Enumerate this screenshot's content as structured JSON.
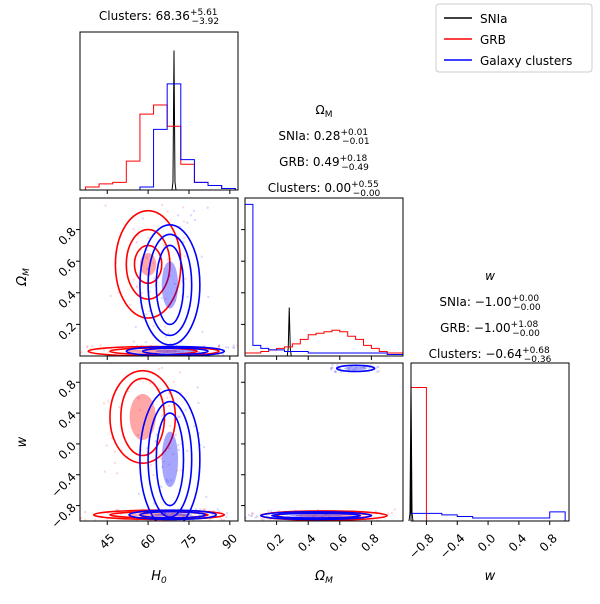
{
  "chart_data": {
    "type": "corner",
    "legend": {
      "placement": "top-right",
      "entries": [
        {
          "name": "SNIa",
          "color": "#000000"
        },
        {
          "name": "GRB",
          "color": "#ff0000"
        },
        {
          "name": "Galaxy clusters",
          "color": "#0000ff"
        }
      ]
    },
    "parameters": [
      {
        "key": "H0",
        "label": "H",
        "sub": "0",
        "range": [
          35,
          93
        ],
        "ticks": [
          45,
          60,
          75,
          90
        ],
        "tick_labels": [
          "45",
          "60",
          "75",
          "90"
        ]
      },
      {
        "key": "OmegaM",
        "label": "Ω",
        "sub": "M",
        "range": [
          0.0,
          1.0
        ],
        "ticks": [
          0.2,
          0.4,
          0.6,
          0.8
        ],
        "tick_labels": [
          "0.2",
          "0.4",
          "0.6",
          "0.8"
        ]
      },
      {
        "key": "w",
        "label": "w",
        "sub": "",
        "range": [
          -1.0,
          1.05
        ],
        "ticks": [
          -0.8,
          -0.4,
          0.0,
          0.4,
          0.8
        ],
        "tick_labels": [
          "−0.8",
          "−0.4",
          "0.0",
          "0.4",
          "0.8"
        ]
      }
    ],
    "titles": {
      "H0": [
        {
          "prefix": "Clusters: ",
          "value": "68.36",
          "plus": "+5.61",
          "minus": "−3.92"
        }
      ],
      "OmegaM": [
        {
          "prefix": "",
          "value": "Ω",
          "sub": "M"
        },
        {
          "prefix": "SNIa: ",
          "value": "0.28",
          "plus": "+0.01",
          "minus": "−0.01"
        },
        {
          "prefix": "GRB: ",
          "value": "0.49",
          "plus": "+0.18",
          "minus": "−0.49"
        },
        {
          "prefix": "Clusters: ",
          "value": "0.00",
          "plus": "+0.55",
          "minus": "−0.00"
        }
      ],
      "w": [
        {
          "prefix": "",
          "value": "w"
        },
        {
          "prefix": "SNIa: ",
          "value": "−1.00",
          "plus": "+0.00",
          "minus": "−0.00"
        },
        {
          "prefix": "GRB: ",
          "value": "−1.00",
          "plus": "+1.08",
          "minus": "−0.00"
        },
        {
          "prefix": "Clusters: ",
          "value": "−0.64",
          "plus": "+0.68",
          "minus": "−0.36"
        }
      ]
    },
    "histograms": {
      "H0": {
        "bins": [
          37,
          42,
          47,
          52,
          57,
          62,
          67,
          72,
          77,
          82,
          87,
          92
        ],
        "series": [
          {
            "name": "SNIa",
            "spike": 69.5,
            "spike_height": 0.92
          },
          {
            "name": "GRB",
            "counts": [
              0.02,
              0.04,
              0.05,
              0.19,
              0.5,
              0.56,
              0.42,
              0.17,
              0.05,
              0.03,
              0.01
            ]
          },
          {
            "name": "Galaxy clusters",
            "counts": [
              0.0,
              0.0,
              0.0,
              0.0,
              0.02,
              0.4,
              0.7,
              0.2,
              0.05,
              0.03,
              0.01
            ]
          }
        ]
      },
      "OmegaM": {
        "bins": [
          0.0,
          0.05,
          0.1,
          0.15,
          0.2,
          0.25,
          0.3,
          0.35,
          0.4,
          0.45,
          0.5,
          0.55,
          0.6,
          0.65,
          0.7,
          0.75,
          0.8,
          0.85,
          0.9,
          0.95,
          1.0
        ],
        "series": [
          {
            "name": "SNIa",
            "spike": 0.28,
            "spike_height": 0.32
          },
          {
            "name": "GRB",
            "counts": [
              0.02,
              0.02,
              0.03,
              0.04,
              0.05,
              0.06,
              0.08,
              0.11,
              0.14,
              0.15,
              0.16,
              0.17,
              0.16,
              0.13,
              0.11,
              0.07,
              0.05,
              0.03,
              0.02,
              0.02
            ]
          },
          {
            "name": "Galaxy clusters",
            "counts": [
              1.0,
              0.07,
              0.05,
              0.04,
              0.04,
              0.03,
              0.03,
              0.03,
              0.02,
              0.02,
              0.02,
              0.02,
              0.02,
              0.02,
              0.02,
              0.02,
              0.02,
              0.02,
              0.01,
              0.01
            ]
          }
        ]
      },
      "w": {
        "bins": [
          -1.0,
          -0.8,
          -0.6,
          -0.4,
          -0.2,
          0.0,
          0.2,
          0.4,
          0.6,
          0.8,
          1.0
        ],
        "series": [
          {
            "name": "SNIa",
            "spike": -1.0,
            "spike_height": 0.92
          },
          {
            "name": "GRB",
            "counts": [
              0.88,
              0.0,
              0.0,
              0.0,
              0.0,
              0.0,
              0.0,
              0.0,
              0.0,
              0.0
            ]
          },
          {
            "name": "Galaxy clusters",
            "counts": [
              0.05,
              0.05,
              0.04,
              0.03,
              0.02,
              0.02,
              0.02,
              0.02,
              0.02,
              0.06
            ]
          }
        ]
      }
    },
    "contours": {
      "H0_OmegaM": [
        {
          "name": "GRB",
          "center": [
            60,
            0.58
          ],
          "levels": [
            [
              5,
              0.12
            ],
            [
              8,
              0.22
            ],
            [
              12,
              0.34
            ]
          ]
        },
        {
          "name": "GRB",
          "center": [
            62,
            0.03
          ],
          "levels": [
            [
              16,
              0.02
            ],
            [
              24,
              0.03
            ]
          ]
        },
        {
          "name": "Galaxy clusters",
          "center": [
            68,
            0.45
          ],
          "levels": [
            [
              5,
              0.25
            ],
            [
              8,
              0.32
            ],
            [
              11,
              0.38
            ]
          ]
        },
        {
          "name": "Galaxy clusters",
          "center": [
            70,
            0.03
          ],
          "levels": [
            [
              12,
              0.02
            ],
            [
              18,
              0.03
            ]
          ]
        }
      ],
      "H0_w": [
        {
          "name": "GRB",
          "center": [
            58,
            0.35
          ],
          "levels": [
            [
              8,
              0.5
            ],
            [
              12,
              0.6
            ]
          ]
        },
        {
          "name": "GRB",
          "center": [
            64,
            -0.92
          ],
          "levels": [
            [
              18,
              0.04
            ],
            [
              24,
              0.06
            ]
          ]
        },
        {
          "name": "Galaxy clusters",
          "center": [
            68,
            -0.2
          ],
          "levels": [
            [
              5,
              0.6
            ],
            [
              8,
              0.75
            ],
            [
              11,
              0.9
            ]
          ]
        },
        {
          "name": "Galaxy clusters",
          "center": [
            69,
            -0.92
          ],
          "levels": [
            [
              12,
              0.04
            ],
            [
              16,
              0.06
            ]
          ]
        }
      ],
      "OmegaM_w": [
        {
          "name": "GRB",
          "center": [
            0.5,
            -0.93
          ],
          "levels": [
            [
              0.3,
              0.04
            ],
            [
              0.4,
              0.06
            ]
          ]
        },
        {
          "name": "Galaxy clusters",
          "center": [
            0.45,
            -0.93
          ],
          "levels": [
            [
              0.28,
              0.03
            ],
            [
              0.35,
              0.05
            ]
          ]
        },
        {
          "name": "Galaxy clusters",
          "center": [
            0.7,
            0.98
          ],
          "levels": [
            [
              0.12,
              0.04
            ]
          ]
        }
      ]
    }
  }
}
